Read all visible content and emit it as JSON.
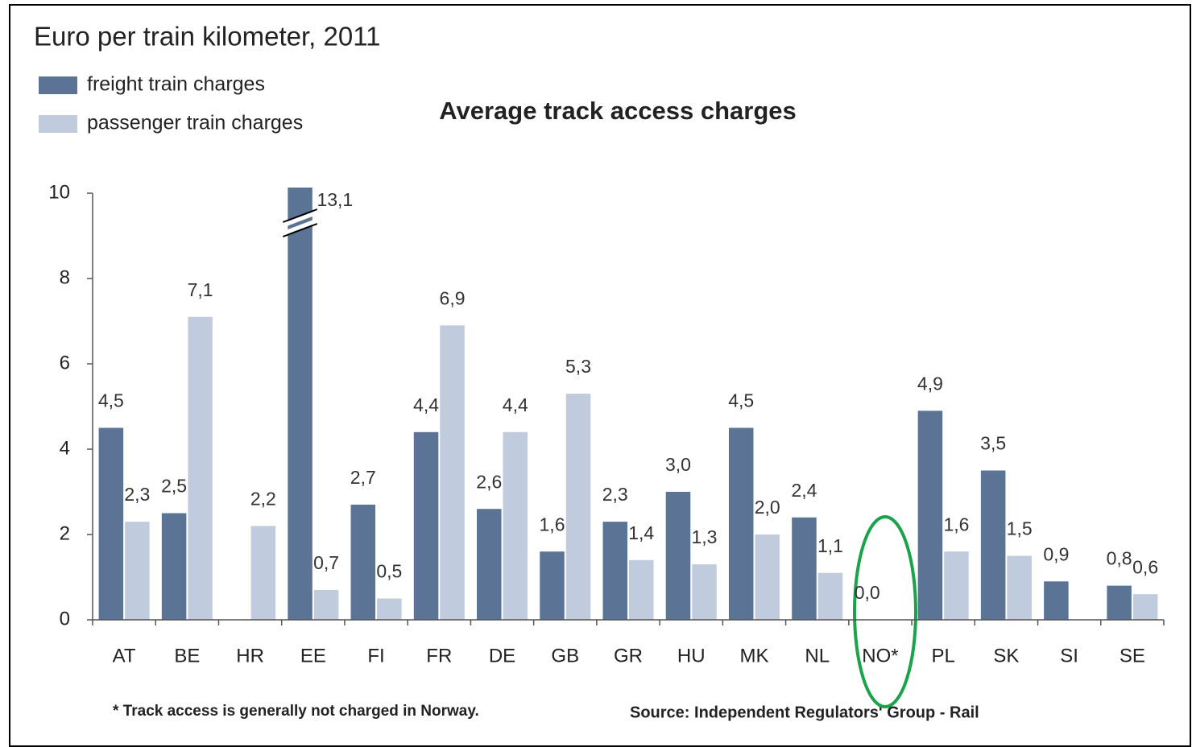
{
  "chart_data": {
    "type": "bar",
    "title": "Euro per train kilometer, 2011",
    "subtitle": "Average track access charges",
    "categories": [
      "AT",
      "BE",
      "HR",
      "EE",
      "FI",
      "FR",
      "DE",
      "GB",
      "GR",
      "HU",
      "MK",
      "NL",
      "NO*",
      "PL",
      "SK",
      "SI",
      "SE"
    ],
    "series": [
      {
        "name": "freight train charges",
        "color": "#5b7496",
        "values": [
          4.5,
          2.5,
          null,
          13.1,
          2.7,
          4.4,
          2.6,
          1.6,
          2.3,
          3.0,
          4.5,
          2.4,
          0.0,
          4.9,
          3.5,
          0.9,
          0.8
        ],
        "value_labels": [
          "4,5",
          "2,5",
          null,
          "13,1",
          "2,7",
          "4,4",
          "2,6",
          "1,6",
          "2,3",
          "3,0",
          "4,5",
          "2,4",
          "0,0",
          "4,9",
          "3,5",
          "0,9",
          "0,8"
        ]
      },
      {
        "name": "passenger train charges",
        "color": "#c0cbdd",
        "values": [
          2.3,
          7.1,
          2.2,
          0.7,
          0.5,
          6.9,
          4.4,
          5.3,
          1.4,
          1.3,
          2.0,
          1.1,
          null,
          1.6,
          1.5,
          null,
          0.6
        ],
        "value_labels": [
          "2,3",
          "7,1",
          "2,2",
          "0,7",
          "0,5",
          "6,9",
          "4,4",
          "5,3",
          "1,4",
          "1,3",
          "2,0",
          "1,1",
          null,
          "1,6",
          "1,5",
          null,
          "0,6"
        ]
      }
    ],
    "ylim": [
      0,
      10
    ],
    "yticks": [
      0,
      2,
      4,
      6,
      8,
      10
    ],
    "footnote": "* Track access is generally not charged in Norway.",
    "source": "Source: Independent Regulators' Group - Rail"
  }
}
